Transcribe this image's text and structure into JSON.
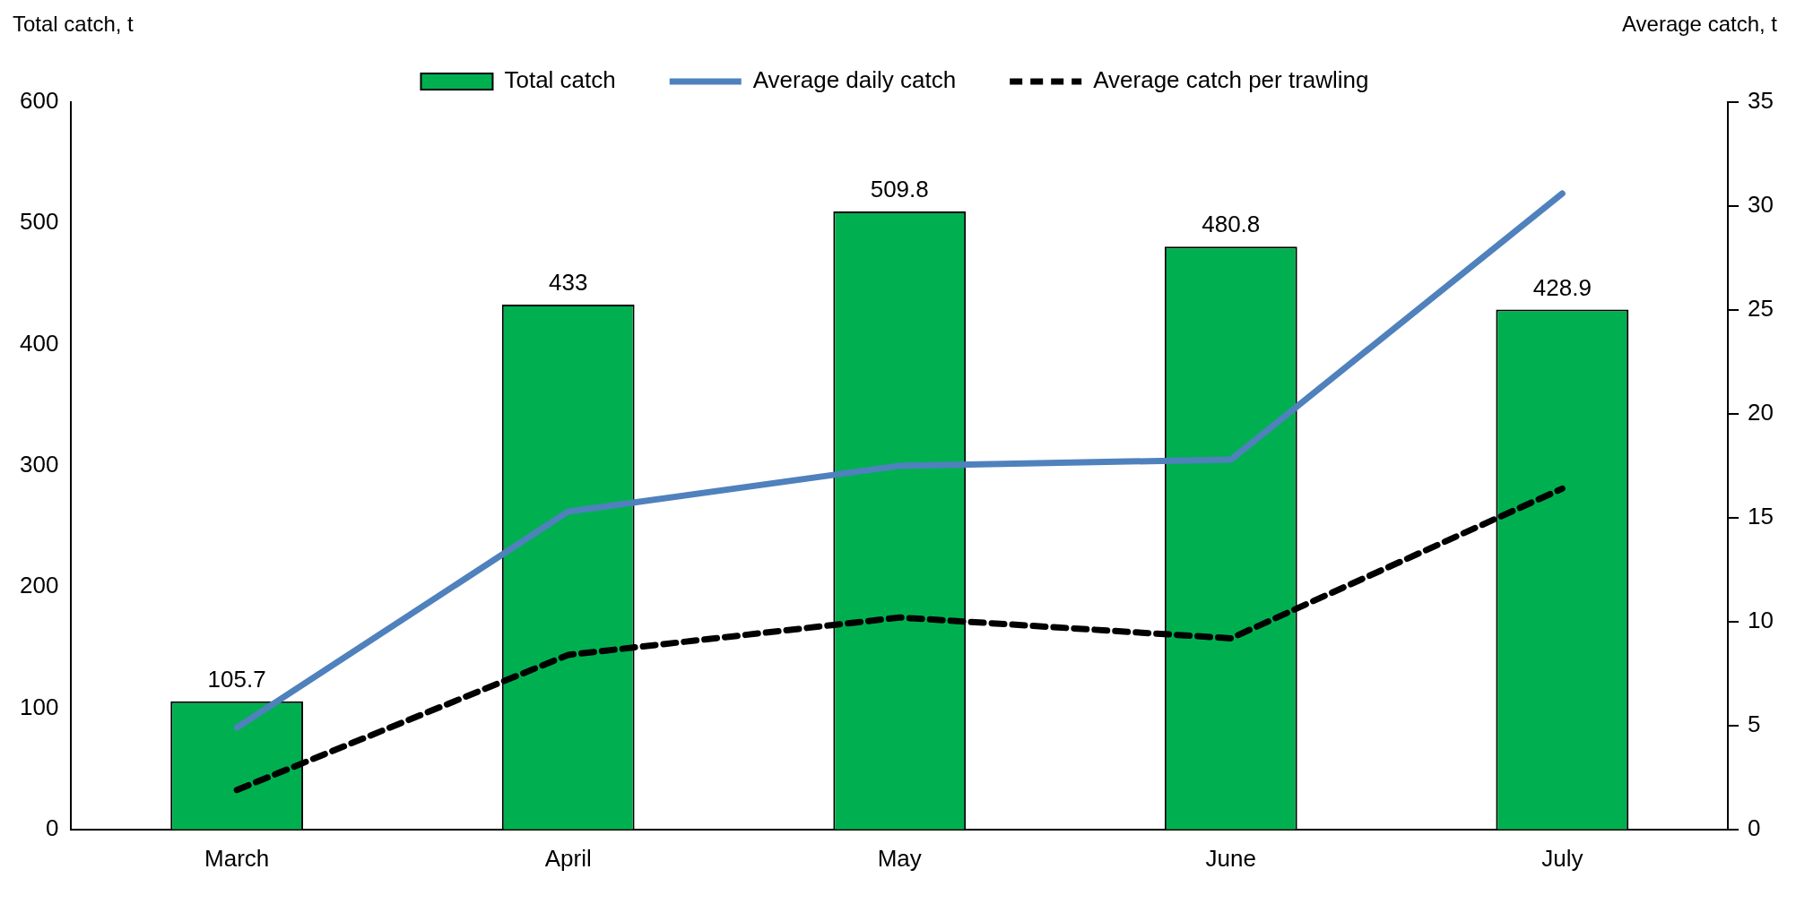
{
  "chart_data": {
    "type": "bar",
    "ylabel": "Total catch, t",
    "y2label": "Average catch, t",
    "categories": [
      "March",
      "April",
      "May",
      "June",
      "July"
    ],
    "series": [
      {
        "name": "Total catch",
        "color": "#00b050",
        "values": [
          105.7,
          433,
          509.8,
          480.8,
          428.9
        ],
        "value_labels": [
          "105.7",
          "433",
          "509.8",
          "480.8",
          "428.9"
        ]
      },
      {
        "name": "Average daily catch",
        "type": "line",
        "color": "#4f81bd",
        "axis": "y2",
        "line_style": "solid",
        "values": [
          4.9,
          15.3,
          17.5,
          17.8,
          30.6
        ]
      },
      {
        "name": "Average catch per trawling",
        "type": "line",
        "color": "#000000",
        "axis": "y2",
        "line_style": "dashed",
        "values": [
          1.9,
          8.4,
          10.2,
          9.2,
          16.4
        ]
      }
    ],
    "ylim": [
      0,
      600
    ],
    "yticks": [
      0,
      100,
      200,
      300,
      400,
      500,
      600
    ],
    "y2lim": [
      0,
      35
    ],
    "y2ticks": [
      0,
      5,
      10,
      15,
      20,
      25,
      30,
      35
    ],
    "grid": false,
    "legend": "top",
    "marker": "none"
  }
}
